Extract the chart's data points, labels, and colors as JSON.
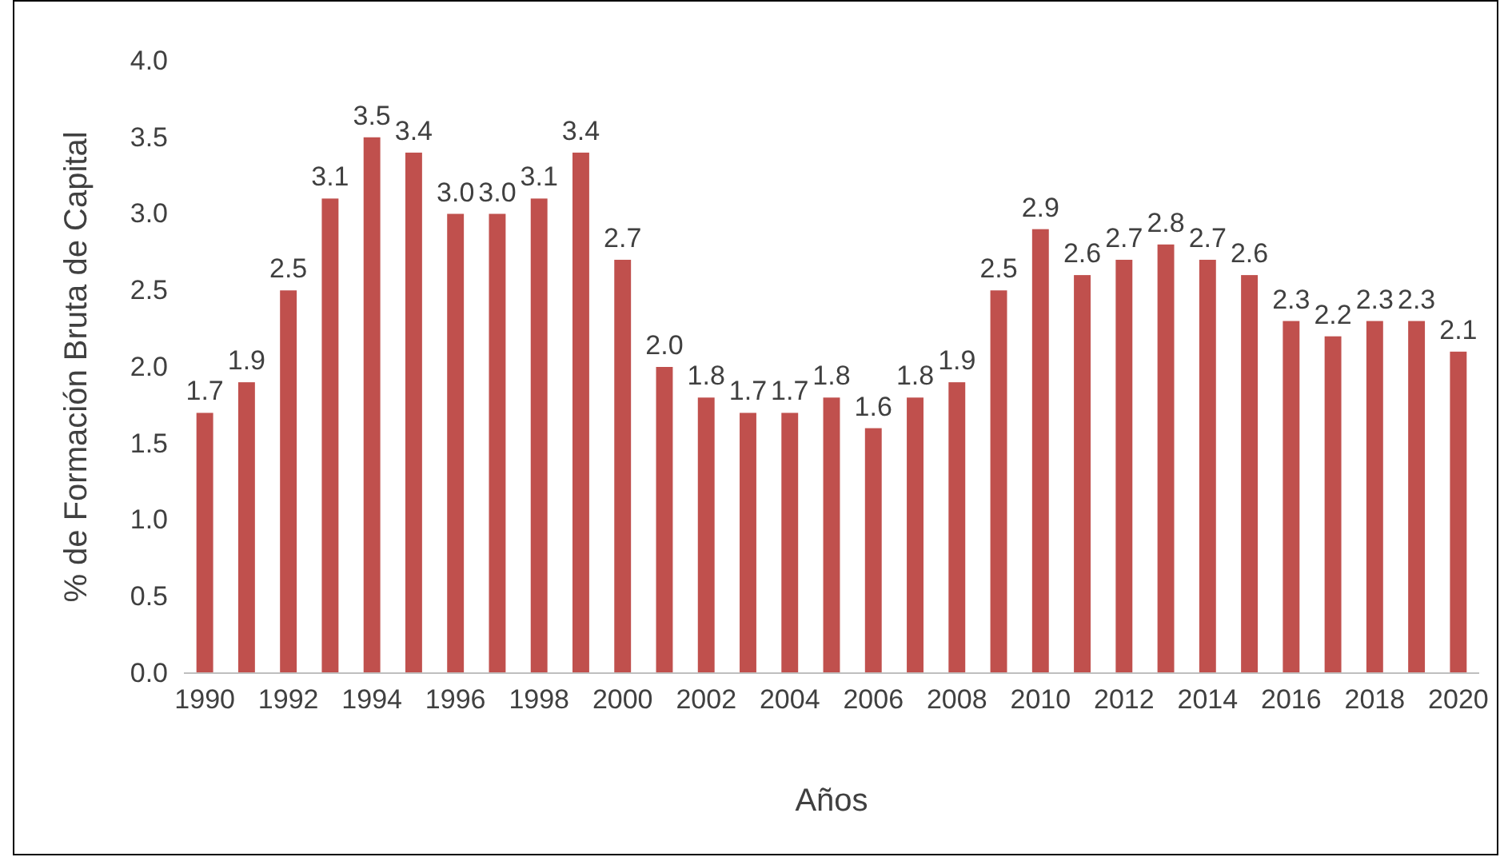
{
  "chart_data": {
    "type": "bar",
    "xlabel": "Años",
    "ylabel": "% de Formación Bruta de Capital",
    "categories": [
      "1990",
      null,
      "1992",
      null,
      "1994",
      null,
      "1996",
      null,
      "1998",
      null,
      "2000",
      null,
      "2002",
      null,
      "2004",
      null,
      "2006",
      null,
      "2008",
      null,
      "2010",
      null,
      "2012",
      null,
      "2014",
      null,
      "2016",
      null,
      "2018",
      null,
      "2020"
    ],
    "values": [
      1.7,
      1.9,
      2.5,
      3.1,
      3.5,
      3.4,
      3.0,
      3.0,
      3.1,
      3.4,
      2.7,
      2.0,
      1.8,
      1.7,
      1.7,
      1.8,
      1.6,
      1.8,
      1.9,
      2.5,
      2.9,
      2.6,
      2.7,
      2.8,
      2.7,
      2.6,
      2.3,
      2.2,
      2.3,
      2.3,
      2.1
    ],
    "value_labels": [
      "1.7",
      "1.9",
      "2.5",
      "3.1",
      "3.5",
      "3.4",
      "3.0",
      "3.0",
      "3.1",
      "3.4",
      "2.7",
      "2.0",
      "1.8",
      "1.7",
      "1.7",
      "1.8",
      "1.6",
      "1.8",
      "1.9",
      "2.5",
      "2.9",
      "2.6",
      "2.7",
      "2.8",
      "2.7",
      "2.6",
      "2.3",
      "2.2",
      "2.3",
      "2.3",
      "2.1"
    ],
    "color": "#c0504d",
    "ylim": [
      0,
      4
    ],
    "yticks": [
      {
        "value": 0,
        "label": "0.0"
      },
      {
        "value": 0.5,
        "label": "0.5"
      },
      {
        "value": 1,
        "label": "1.0"
      },
      {
        "value": 1.5,
        "label": "1.5"
      },
      {
        "value": 2,
        "label": "2.0"
      },
      {
        "value": 2.5,
        "label": "2.5"
      },
      {
        "value": 3,
        "label": "3.0"
      },
      {
        "value": 3.5,
        "label": "3.5"
      },
      {
        "value": 4,
        "label": "4.0"
      }
    ],
    "grid": false
  }
}
